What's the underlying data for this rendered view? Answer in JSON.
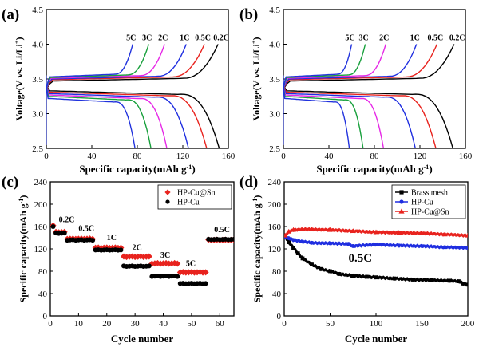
{
  "chart_data": [
    {
      "id": "a",
      "panel_label": "(a)",
      "type": "line",
      "xlabel": "Specific capacity(mAh g",
      "xlabel_sup": "-1",
      "xlabel_end": ")",
      "ylabel": "Voltage(V vs. Li/Li",
      "ylabel_sup": "+",
      "ylabel_end": ")",
      "xlim": [
        0,
        160
      ],
      "ylim": [
        2.5,
        4.5
      ],
      "xticks": [
        "0",
        "40",
        "80",
        "120",
        "160"
      ],
      "xtick_values": [
        0,
        40,
        80,
        120,
        160
      ],
      "yticks": [
        "2.5",
        "3.0",
        "3.5",
        "4.0",
        "4.5"
      ],
      "ytick_values": [
        2.5,
        3.0,
        3.5,
        4.0,
        4.5
      ],
      "grid": false,
      "series": [
        {
          "name": "0.2C",
          "color": "#000000",
          "charge_end": 151,
          "discharge_end": 152,
          "charge_plateau": 3.47,
          "discharge_plateau": 3.33
        },
        {
          "name": "0.5C",
          "color": "#e8231e",
          "charge_end": 139,
          "discharge_end": 141,
          "charge_plateau": 3.49,
          "discharge_plateau": 3.31
        },
        {
          "name": "1C",
          "color": "#1f2ee0",
          "charge_end": 123,
          "discharge_end": 125,
          "charge_plateau": 3.5,
          "discharge_plateau": 3.29
        },
        {
          "name": "2C",
          "color": "#e628e6",
          "charge_end": 104,
          "discharge_end": 106,
          "charge_plateau": 3.51,
          "discharge_plateau": 3.27
        },
        {
          "name": "3C",
          "color": "#18a03c",
          "charge_end": 90,
          "discharge_end": 92,
          "charge_plateau": 3.52,
          "discharge_plateau": 3.25
        },
        {
          "name": "5C",
          "color": "#2233dd",
          "charge_end": 76,
          "discharge_end": 78,
          "charge_plateau": 3.53,
          "discharge_plateau": 3.22
        }
      ]
    },
    {
      "id": "b",
      "panel_label": "(b)",
      "type": "line",
      "xlabel": "Specific capacity(mAh g",
      "xlabel_sup": "-1",
      "xlabel_end": ")",
      "ylabel": "Voltage(V vs. Li/Li",
      "ylabel_sup": "+",
      "ylabel_end": ")",
      "xlim": [
        0,
        160
      ],
      "ylim": [
        2.5,
        4.5
      ],
      "xticks": [
        "0",
        "40",
        "80",
        "120",
        "160"
      ],
      "xtick_values": [
        0,
        40,
        80,
        120,
        160
      ],
      "yticks": [
        "2.5",
        "3.0",
        "3.5",
        "4.0",
        "4.5"
      ],
      "ytick_values": [
        2.5,
        3.0,
        3.5,
        4.0,
        4.5
      ],
      "grid": false,
      "series": [
        {
          "name": "0.2C",
          "color": "#000000",
          "charge_end": 150,
          "discharge_end": 149,
          "charge_plateau": 3.47,
          "discharge_plateau": 3.33
        },
        {
          "name": "0.5C",
          "color": "#e8231e",
          "charge_end": 135,
          "discharge_end": 134,
          "charge_plateau": 3.49,
          "discharge_plateau": 3.31
        },
        {
          "name": "1C",
          "color": "#1f2ee0",
          "charge_end": 117,
          "discharge_end": 116,
          "charge_plateau": 3.5,
          "discharge_plateau": 3.29
        },
        {
          "name": "2C",
          "color": "#e628e6",
          "charge_end": 90,
          "discharge_end": 88,
          "charge_plateau": 3.51,
          "discharge_plateau": 3.27
        },
        {
          "name": "3C",
          "color": "#18a03c",
          "charge_end": 72,
          "discharge_end": 70,
          "charge_plateau": 3.52,
          "discharge_plateau": 3.25
        },
        {
          "name": "5C",
          "color": "#2233dd",
          "charge_end": 60,
          "discharge_end": 58,
          "charge_plateau": 3.53,
          "discharge_plateau": 3.22
        }
      ]
    },
    {
      "id": "c",
      "panel_label": "(c)",
      "type": "scatter",
      "xlabel": "Cycle number",
      "ylabel": "Specific capacity(mAh g",
      "ylabel_sup": "-1",
      "ylabel_end": ")",
      "xlim": [
        0,
        65
      ],
      "ylim": [
        0,
        240
      ],
      "xticks": [
        "0",
        "10",
        "20",
        "30",
        "40",
        "50",
        "60"
      ],
      "xtick_values": [
        0,
        10,
        20,
        30,
        40,
        50,
        60
      ],
      "yticks": [
        "0",
        "40",
        "80",
        "120",
        "160",
        "200",
        "240"
      ],
      "ytick_values": [
        0,
        40,
        80,
        120,
        160,
        200,
        240
      ],
      "grid": false,
      "legend_position": "top-right",
      "rate_labels": [
        {
          "text": "0.2C",
          "x": 3,
          "y": 168
        },
        {
          "text": "0.5C",
          "x": 10,
          "y": 152
        },
        {
          "text": "1C",
          "x": 20,
          "y": 136
        },
        {
          "text": "2C",
          "x": 29,
          "y": 118
        },
        {
          "text": "3C",
          "x": 39,
          "y": 104
        },
        {
          "text": "5C",
          "x": 48,
          "y": 89
        },
        {
          "text": "0.5C",
          "x": 58,
          "y": 150
        }
      ],
      "series": [
        {
          "name": "HP-Cu@Sn",
          "color": "#e8231e",
          "marker": "diamond",
          "segments": [
            {
              "from": 1,
              "to": 1,
              "value": 162
            },
            {
              "from": 2,
              "to": 5,
              "value": 150
            },
            {
              "from": 6,
              "to": 15,
              "value": 138
            },
            {
              "from": 16,
              "to": 25,
              "value": 122
            },
            {
              "from": 26,
              "to": 35,
              "value": 106
            },
            {
              "from": 36,
              "to": 45,
              "value": 94
            },
            {
              "from": 46,
              "to": 55,
              "value": 78
            },
            {
              "from": 56,
              "to": 65,
              "value": 136
            }
          ]
        },
        {
          "name": "HP-Cu",
          "color": "#000000",
          "marker": "circle",
          "segments": [
            {
              "from": 1,
              "to": 1,
              "value": 160
            },
            {
              "from": 2,
              "to": 5,
              "value": 148
            },
            {
              "from": 6,
              "to": 15,
              "value": 136
            },
            {
              "from": 16,
              "to": 25,
              "value": 118
            },
            {
              "from": 26,
              "to": 35,
              "value": 89
            },
            {
              "from": 36,
              "to": 45,
              "value": 71
            },
            {
              "from": 46,
              "to": 55,
              "value": 58
            },
            {
              "from": 56,
              "to": 65,
              "value": 137
            }
          ]
        }
      ]
    },
    {
      "id": "d",
      "panel_label": "(d)",
      "type": "line",
      "xlabel": "Cycle number",
      "ylabel": "Specific capacity(mAh g",
      "ylabel_sup": "-1",
      "ylabel_end": ")",
      "xlim": [
        0,
        200
      ],
      "ylim": [
        0,
        240
      ],
      "xticks": [
        "0",
        "50",
        "100",
        "150",
        "200"
      ],
      "xtick_values": [
        0,
        50,
        100,
        150,
        200
      ],
      "yticks": [
        "0",
        "40",
        "80",
        "120",
        "160",
        "200",
        "240"
      ],
      "ytick_values": [
        0,
        40,
        80,
        120,
        160,
        200,
        240
      ],
      "grid": false,
      "legend_position": "top-right",
      "annotation": {
        "text": "0.5C",
        "x": 70,
        "y": 97
      },
      "series": [
        {
          "name": "Brass mesh",
          "color": "#000000",
          "marker": "square",
          "x": [
            1,
            5,
            10,
            15,
            20,
            30,
            40,
            50,
            60,
            75,
            90,
            100,
            120,
            140,
            160,
            180,
            190,
            195,
            200
          ],
          "y": [
            143,
            132,
            122,
            112,
            103,
            92,
            84,
            80,
            75,
            72,
            70,
            69,
            67,
            65,
            64,
            63,
            62,
            58,
            56
          ]
        },
        {
          "name": "HP-Cu",
          "color": "#1f2ee0",
          "marker": "circle",
          "x": [
            1,
            5,
            10,
            20,
            30,
            50,
            70,
            75,
            100,
            125,
            150,
            175,
            200
          ],
          "y": [
            142,
            139,
            136,
            133,
            131,
            130,
            129,
            125,
            128,
            126,
            125,
            123,
            122
          ]
        },
        {
          "name": "HP-Cu@Sn",
          "color": "#e8231e",
          "marker": "triangle",
          "x": [
            1,
            5,
            10,
            20,
            30,
            50,
            75,
            100,
            125,
            150,
            175,
            200
          ],
          "y": [
            144,
            151,
            154,
            155,
            155,
            154,
            152,
            150,
            149,
            148,
            146,
            144
          ]
        }
      ]
    }
  ]
}
